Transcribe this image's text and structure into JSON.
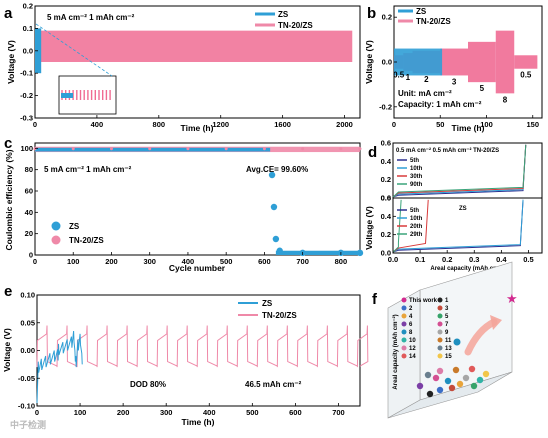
{
  "colors": {
    "zs": "#2f9fd6",
    "tn": "#ef89a8",
    "tn_fill": "#f06c93",
    "green": "#3aa47a",
    "red": "#d83a3a",
    "navy": "#2b2f8f",
    "gold": "#d1a336"
  },
  "panels": {
    "a": {
      "label": "a",
      "annotation": "5 mA cm⁻²  1 mAh cm⁻²",
      "ylabel": "Voltage (V)",
      "xlabel": "Time (h)",
      "legend": [
        "ZS",
        "TN-20/ZS"
      ],
      "xticks": [
        "0",
        "400",
        "800",
        "1200",
        "1600",
        "2000"
      ],
      "yticks": [
        "-0.3",
        "-0.2",
        "-0.1",
        "0.0",
        "0.1",
        "0.2"
      ]
    },
    "b": {
      "label": "b",
      "ylabel": "Voltage (V)",
      "xlabel": "Time (h)",
      "legend": [
        "ZS",
        "TN-20/ZS"
      ],
      "rates": [
        "0.5",
        "1",
        "2",
        "3",
        "5",
        "8",
        "0.5"
      ],
      "unit_text": "Unit: mA cm⁻²",
      "capacity_text": "Capacity: 1 mAh cm⁻²",
      "xticks": [
        "0",
        "50",
        "100",
        "150"
      ],
      "yticks": [
        "-0.2",
        "0.0",
        "0.2"
      ]
    },
    "c": {
      "label": "c",
      "annotation": "5 mA cm⁻²  1 mAh cm⁻²",
      "ce_text": "Avg.CE= 99.60%",
      "ylabel": "Coulombic efficiency (%)",
      "xlabel": "Cycle number",
      "legend": [
        "ZS",
        "TN-20/ZS"
      ],
      "xticks": [
        "0",
        "100",
        "200",
        "300",
        "400",
        "500",
        "600",
        "700",
        "800"
      ],
      "yticks": [
        "0",
        "20",
        "40",
        "60",
        "80",
        "100"
      ]
    },
    "d": {
      "label": "d",
      "top_header": "0.5 mA cm⁻²  0.5 mAh cm⁻²  TN-20/ZS",
      "bottom_header": "ZS",
      "ylabel": "Voltage (V)",
      "xlabel": "Areal capacity (mAh cm⁻²)",
      "top_legend": [
        "5th",
        "10th",
        "30th",
        "90th"
      ],
      "bottom_legend": [
        "5th",
        "10th",
        "20th",
        "29th"
      ],
      "xticks": [
        "0.0",
        "0.1",
        "0.2",
        "0.3",
        "0.4",
        "0.5"
      ],
      "yticks_top": [
        "0.0",
        "0.2",
        "0.4",
        "0.6"
      ],
      "yticks_bottom": [
        "0.0",
        "0.2",
        "0.4",
        "0.6"
      ]
    },
    "e": {
      "label": "e",
      "ylabel": "Voltage (V)",
      "xlabel": "Time (h)",
      "legend": [
        "ZS",
        "TN-20/ZS"
      ],
      "dod_text": "DOD 80%",
      "cap_text": "46.5 mAh cm⁻²",
      "xticks": [
        "0",
        "100",
        "200",
        "300",
        "400",
        "500",
        "600",
        "700"
      ],
      "yticks": [
        "-0.10",
        "-0.05",
        "0.00",
        "0.05",
        "0.10"
      ]
    },
    "f": {
      "label": "f",
      "zlabel": "Areal capacity (mAh cm⁻²)",
      "legend": [
        "This work",
        "1",
        "2",
        "3",
        "4",
        "5",
        "6",
        "7",
        "8",
        "9",
        "10",
        "11",
        "12",
        "13",
        "14",
        "15"
      ]
    }
  },
  "watermark": "中子检测",
  "chart_data": [
    {
      "panel": "a",
      "type": "line",
      "series": [
        {
          "name": "ZS",
          "x": [
            0,
            10,
            20,
            30,
            40
          ],
          "y_range": [
            -0.1,
            0.1
          ]
        },
        {
          "name": "TN-20/ZS",
          "x": [
            0,
            2050
          ],
          "y_range": [
            -0.05,
            0.09
          ]
        }
      ],
      "xlim": [
        0,
        2100
      ],
      "ylim": [
        -0.3,
        0.2
      ]
    },
    {
      "panel": "b",
      "type": "line",
      "series": [
        {
          "name": "ZS",
          "x": [
            0,
            52
          ],
          "y_range": [
            -0.06,
            0.06
          ]
        },
        {
          "name": "TN-20/ZS",
          "x": [
            0,
            150
          ],
          "y_range": [
            -0.15,
            0.15
          ]
        }
      ],
      "segments": [
        {
          "rate": 0.5,
          "t": [
            0,
            10
          ],
          "amp": 0.03
        },
        {
          "rate": 1,
          "t": [
            10,
            20
          ],
          "amp": 0.04
        },
        {
          "rate": 2,
          "t": [
            20,
            50
          ],
          "amp": 0.05
        },
        {
          "rate": 3,
          "t": [
            50,
            80
          ],
          "amp": 0.06
        },
        {
          "rate": 5,
          "t": [
            80,
            110
          ],
          "amp": 0.09
        },
        {
          "rate": 8,
          "t": [
            110,
            130
          ],
          "amp": 0.14
        },
        {
          "rate": 0.5,
          "t": [
            130,
            155
          ],
          "amp": 0.03
        }
      ],
      "xlim": [
        0,
        160
      ],
      "ylim": [
        -0.25,
        0.25
      ]
    },
    {
      "panel": "c",
      "type": "scatter",
      "series": [
        {
          "name": "ZS",
          "x": [
            0,
            100,
            200,
            300,
            400,
            500,
            600,
            620,
            625,
            630,
            640,
            700,
            800,
            850
          ],
          "y": [
            99,
            99,
            99,
            99,
            99,
            99,
            99,
            75,
            45,
            15,
            4,
            2,
            2,
            2
          ]
        },
        {
          "name": "TN-20/ZS",
          "x": [
            0,
            100,
            200,
            300,
            400,
            500,
            600,
            700,
            800,
            850
          ],
          "y": [
            99.6,
            99.6,
            99.6,
            99.6,
            99.6,
            99.6,
            99.6,
            99.6,
            99.6,
            99.6
          ]
        }
      ],
      "avg_ce": 99.6,
      "xlim": [
        0,
        850
      ],
      "ylim": [
        0,
        105
      ]
    },
    {
      "panel": "d-top",
      "type": "line",
      "series": [
        {
          "name": "5th",
          "cutoff": 0.49
        },
        {
          "name": "10th",
          "cutoff": 0.49
        },
        {
          "name": "30th",
          "cutoff": 0.49
        },
        {
          "name": "90th",
          "cutoff": 0.49
        }
      ],
      "xlim": [
        0,
        0.55
      ],
      "ylim": [
        0,
        0.6
      ]
    },
    {
      "panel": "d-bottom",
      "type": "line",
      "series": [
        {
          "name": "5th",
          "cutoff": 0.48
        },
        {
          "name": "10th",
          "cutoff": 0.48
        },
        {
          "name": "20th",
          "cutoff": 0.13
        },
        {
          "name": "29th",
          "cutoff": 0.03
        }
      ],
      "xlim": [
        0,
        0.55
      ],
      "ylim": [
        0,
        0.6
      ]
    },
    {
      "panel": "e",
      "type": "line",
      "series": [
        {
          "name": "ZS",
          "x": [
            0,
            105
          ],
          "y_range": [
            -0.1,
            0.035
          ]
        },
        {
          "name": "TN-20/ZS",
          "cycle_period_h": 46.5,
          "x": [
            0,
            750
          ],
          "y_range": [
            -0.035,
            0.05
          ]
        }
      ],
      "dod_percent": 80,
      "xlim": [
        0,
        750
      ],
      "ylim": [
        -0.1,
        0.1
      ]
    }
  ]
}
